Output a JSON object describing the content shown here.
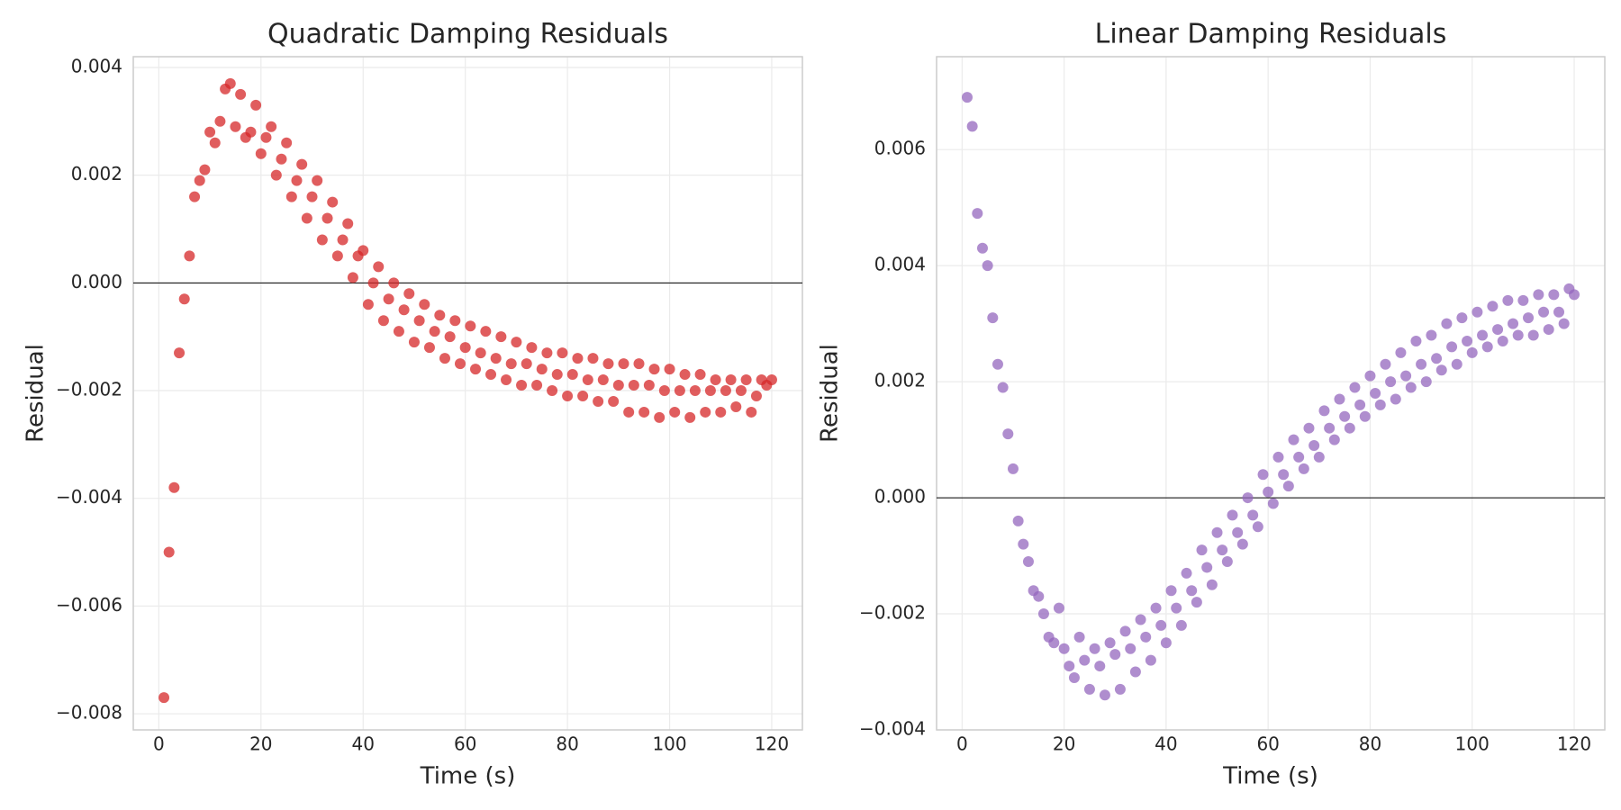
{
  "chart_data": [
    {
      "type": "scatter",
      "title": "Quadratic Damping Residuals",
      "x_label": "Time (s)",
      "y_label": "Residual",
      "grid": true,
      "reference_line": 0,
      "series": [
        {
          "color": "#d62728",
          "x": [
            1,
            2,
            3,
            4,
            5,
            6,
            7,
            8,
            9,
            10,
            11,
            12,
            13,
            14,
            15,
            16,
            17,
            18,
            19,
            20,
            21,
            22,
            23,
            24,
            25,
            26,
            27,
            28,
            29,
            30,
            31,
            32,
            33,
            34,
            35,
            36,
            37,
            38,
            39,
            40,
            41,
            42,
            43,
            44,
            45,
            46,
            47,
            48,
            49,
            50,
            51,
            52,
            53,
            54,
            55,
            56,
            57,
            58,
            59,
            60,
            61,
            62,
            63,
            64,
            65,
            66,
            67,
            68,
            69,
            70,
            71,
            72,
            73,
            74,
            75,
            76,
            77,
            78,
            79,
            80,
            81,
            82,
            83,
            84,
            85,
            86,
            87,
            88,
            89,
            90,
            91,
            92,
            93,
            94,
            95,
            96,
            97,
            98,
            99,
            100,
            101,
            102,
            103,
            104,
            105,
            106,
            107,
            108,
            109,
            110,
            111,
            112,
            113,
            114,
            115,
            116,
            117,
            118,
            119,
            120
          ],
          "values": [
            -0.0077,
            -0.005,
            -0.0038,
            -0.0013,
            -0.0003,
            0.0005,
            0.0016,
            0.0019,
            0.0021,
            0.0028,
            0.0026,
            0.003,
            0.0036,
            0.0037,
            0.0029,
            0.0035,
            0.0027,
            0.0028,
            0.0033,
            0.0024,
            0.0027,
            0.0029,
            0.002,
            0.0023,
            0.0026,
            0.0016,
            0.0019,
            0.0022,
            0.0012,
            0.0016,
            0.0019,
            0.0008,
            0.0012,
            0.0015,
            0.0005,
            0.0008,
            0.0011,
            0.0001,
            0.0005,
            0.0006,
            -0.0004,
            0.0,
            0.0003,
            -0.0007,
            -0.0003,
            0.0,
            -0.0009,
            -0.0005,
            -0.0002,
            -0.0011,
            -0.0007,
            -0.0004,
            -0.0012,
            -0.0009,
            -0.0006,
            -0.0014,
            -0.001,
            -0.0007,
            -0.0015,
            -0.0012,
            -0.0008,
            -0.0016,
            -0.0013,
            -0.0009,
            -0.0017,
            -0.0014,
            -0.001,
            -0.0018,
            -0.0015,
            -0.0011,
            -0.0019,
            -0.0015,
            -0.0012,
            -0.0019,
            -0.0016,
            -0.0013,
            -0.002,
            -0.0017,
            -0.0013,
            -0.0021,
            -0.0017,
            -0.0014,
            -0.0021,
            -0.0018,
            -0.0014,
            -0.0022,
            -0.0018,
            -0.0015,
            -0.0022,
            -0.0019,
            -0.0015,
            -0.0024,
            -0.0019,
            -0.0015,
            -0.0024,
            -0.0019,
            -0.0016,
            -0.0025,
            -0.002,
            -0.0016,
            -0.0024,
            -0.002,
            -0.0017,
            -0.0025,
            -0.002,
            -0.0017,
            -0.0024,
            -0.002,
            -0.0018,
            -0.0024,
            -0.002,
            -0.0018,
            -0.0023,
            -0.002,
            -0.0018,
            -0.0024,
            -0.0021,
            -0.0018,
            -0.0019,
            -0.0018
          ]
        }
      ],
      "xlim": [
        -5,
        126
      ],
      "xticks": [
        0,
        20,
        40,
        60,
        80,
        100,
        120
      ],
      "ylim": [
        -0.0083,
        0.0042
      ],
      "yticks": [
        {
          "value": -0.008,
          "label": "−0.008"
        },
        {
          "value": -0.006,
          "label": "−0.006"
        },
        {
          "value": -0.004,
          "label": "−0.004"
        },
        {
          "value": -0.002,
          "label": "−0.002"
        },
        {
          "value": 0,
          "label": "0.000"
        },
        0.002,
        0.004
      ]
    },
    {
      "type": "scatter",
      "title": "Linear Damping Residuals",
      "x_label": "Time (s)",
      "y_label": "Residual",
      "grid": true,
      "reference_line": 0,
      "series": [
        {
          "color": "#9467bd",
          "x": [
            1,
            2,
            3,
            4,
            5,
            6,
            7,
            8,
            9,
            10,
            11,
            12,
            13,
            14,
            15,
            16,
            17,
            18,
            19,
            20,
            21,
            22,
            23,
            24,
            25,
            26,
            27,
            28,
            29,
            30,
            31,
            32,
            33,
            34,
            35,
            36,
            37,
            38,
            39,
            40,
            41,
            42,
            43,
            44,
            45,
            46,
            47,
            48,
            49,
            50,
            51,
            52,
            53,
            54,
            55,
            56,
            57,
            58,
            59,
            60,
            61,
            62,
            63,
            64,
            65,
            66,
            67,
            68,
            69,
            70,
            71,
            72,
            73,
            74,
            75,
            76,
            77,
            78,
            79,
            80,
            81,
            82,
            83,
            84,
            85,
            86,
            87,
            88,
            89,
            90,
            91,
            92,
            93,
            94,
            95,
            96,
            97,
            98,
            99,
            100,
            101,
            102,
            103,
            104,
            105,
            106,
            107,
            108,
            109,
            110,
            111,
            112,
            113,
            114,
            115,
            116,
            117,
            118,
            119,
            120
          ],
          "values": [
            0.0069,
            0.0064,
            0.0049,
            0.0043,
            0.004,
            0.0031,
            0.0023,
            0.0019,
            0.0011,
            0.0005,
            -0.0004,
            -0.0008,
            -0.0011,
            -0.0016,
            -0.0017,
            -0.002,
            -0.0024,
            -0.0025,
            -0.0019,
            -0.0026,
            -0.0029,
            -0.0031,
            -0.0024,
            -0.0028,
            -0.0033,
            -0.0026,
            -0.0029,
            -0.0034,
            -0.0025,
            -0.0027,
            -0.0033,
            -0.0023,
            -0.0026,
            -0.003,
            -0.0021,
            -0.0024,
            -0.0028,
            -0.0019,
            -0.0022,
            -0.0025,
            -0.0016,
            -0.0019,
            -0.0022,
            -0.0013,
            -0.0016,
            -0.0018,
            -0.0009,
            -0.0012,
            -0.0015,
            -0.0006,
            -0.0009,
            -0.0011,
            -0.0003,
            -0.0006,
            -0.0008,
            0.0,
            -0.0003,
            -0.0005,
            0.0004,
            0.0001,
            -0.0001,
            0.0007,
            0.0004,
            0.0002,
            0.001,
            0.0007,
            0.0005,
            0.0012,
            0.0009,
            0.0007,
            0.0015,
            0.0012,
            0.001,
            0.0017,
            0.0014,
            0.0012,
            0.0019,
            0.0016,
            0.0014,
            0.0021,
            0.0018,
            0.0016,
            0.0023,
            0.002,
            0.0017,
            0.0025,
            0.0021,
            0.0019,
            0.0027,
            0.0023,
            0.002,
            0.0028,
            0.0024,
            0.0022,
            0.003,
            0.0026,
            0.0023,
            0.0031,
            0.0027,
            0.0025,
            0.0032,
            0.0028,
            0.0026,
            0.0033,
            0.0029,
            0.0027,
            0.0034,
            0.003,
            0.0028,
            0.0034,
            0.0031,
            0.0028,
            0.0035,
            0.0032,
            0.0029,
            0.0035,
            0.0032,
            0.003,
            0.0036,
            0.0035
          ]
        }
      ],
      "xlim": [
        -5,
        126
      ],
      "xticks": [
        0,
        20,
        40,
        60,
        80,
        100,
        120
      ],
      "ylim": [
        -0.004,
        0.0076
      ],
      "yticks": [
        {
          "value": -0.004,
          "label": "−0.004"
        },
        {
          "value": -0.002,
          "label": "−0.002"
        },
        {
          "value": 0,
          "label": "0.000"
        },
        0.002,
        0.004,
        0.006
      ]
    }
  ]
}
